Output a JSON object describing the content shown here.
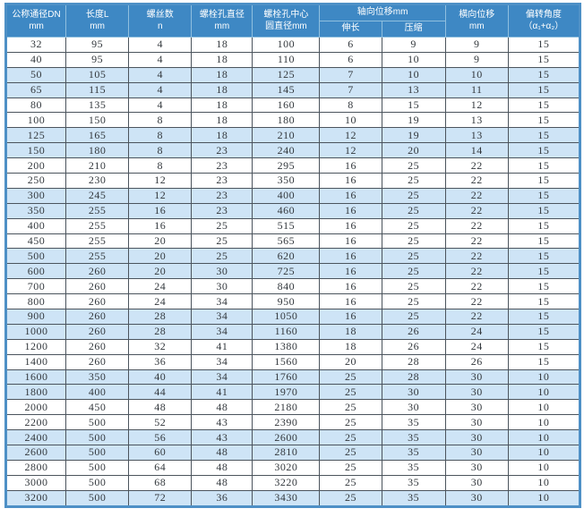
{
  "table": {
    "header": {
      "dn": [
        "公称通径DN",
        "mm"
      ],
      "length": [
        "长度L",
        "mm"
      ],
      "screw_count": [
        "螺丝数",
        "n"
      ],
      "bolt_hole_dia": [
        "螺栓孔直径",
        "mm"
      ],
      "bolt_circle_dia": [
        "螺栓孔中心",
        "圆直径mm"
      ],
      "axial_group": "轴向位移mm",
      "axial_sub": [
        "伸长",
        "压缩"
      ],
      "lateral": [
        "横向位移",
        "mm"
      ],
      "angle": [
        "偏转角度",
        "（α₁+α₂）"
      ]
    },
    "rows": [
      [
        32,
        95,
        4,
        18,
        100,
        6,
        9,
        9,
        15
      ],
      [
        40,
        95,
        4,
        18,
        110,
        6,
        10,
        9,
        15
      ],
      [
        50,
        105,
        4,
        18,
        125,
        7,
        10,
        10,
        15
      ],
      [
        65,
        115,
        4,
        18,
        145,
        7,
        13,
        11,
        15
      ],
      [
        80,
        135,
        4,
        18,
        160,
        8,
        15,
        12,
        15
      ],
      [
        100,
        150,
        8,
        18,
        180,
        10,
        19,
        13,
        15
      ],
      [
        125,
        165,
        8,
        18,
        210,
        12,
        19,
        13,
        15
      ],
      [
        150,
        180,
        8,
        23,
        240,
        12,
        20,
        14,
        15
      ],
      [
        200,
        210,
        8,
        23,
        295,
        16,
        25,
        22,
        15
      ],
      [
        250,
        230,
        12,
        23,
        350,
        16,
        25,
        22,
        15
      ],
      [
        300,
        245,
        12,
        23,
        400,
        16,
        25,
        22,
        15
      ],
      [
        350,
        255,
        16,
        23,
        460,
        16,
        25,
        22,
        15
      ],
      [
        400,
        255,
        16,
        25,
        515,
        16,
        25,
        22,
        15
      ],
      [
        450,
        255,
        20,
        25,
        565,
        16,
        25,
        22,
        15
      ],
      [
        500,
        255,
        20,
        25,
        620,
        16,
        25,
        22,
        15
      ],
      [
        600,
        260,
        20,
        30,
        725,
        16,
        25,
        22,
        15
      ],
      [
        700,
        260,
        24,
        30,
        840,
        16,
        25,
        22,
        15
      ],
      [
        800,
        260,
        24,
        34,
        950,
        16,
        25,
        22,
        15
      ],
      [
        900,
        260,
        28,
        34,
        1050,
        16,
        25,
        22,
        15
      ],
      [
        1000,
        260,
        28,
        34,
        1160,
        18,
        26,
        24,
        15
      ],
      [
        1200,
        260,
        32,
        41,
        1380,
        18,
        26,
        24,
        15
      ],
      [
        1400,
        260,
        36,
        34,
        1560,
        20,
        28,
        26,
        15
      ],
      [
        1600,
        350,
        40,
        34,
        1760,
        25,
        28,
        30,
        10
      ],
      [
        1800,
        400,
        44,
        41,
        1970,
        25,
        30,
        30,
        10
      ],
      [
        2000,
        450,
        48,
        48,
        2180,
        25,
        30,
        30,
        10
      ],
      [
        2200,
        500,
        52,
        43,
        2390,
        25,
        35,
        30,
        10
      ],
      [
        2400,
        500,
        56,
        43,
        2600,
        25,
        35,
        30,
        10
      ],
      [
        2600,
        500,
        60,
        48,
        2810,
        25,
        35,
        30,
        10
      ],
      [
        2800,
        500,
        64,
        48,
        3020,
        25,
        35,
        30,
        10
      ],
      [
        3000,
        500,
        68,
        48,
        3220,
        25,
        35,
        30,
        10
      ],
      [
        3200,
        500,
        72,
        36,
        3430,
        25,
        35,
        30,
        10
      ]
    ],
    "stripe_pattern": "two-white-two-blue"
  },
  "colors": {
    "header_bg": "#3e88c4",
    "header_text": "#ffffff",
    "header_border": "#8fbfdf",
    "stripe_bg": "#cee4f6",
    "body_border": "#4b545d",
    "outer_border": "#4e90c6",
    "text": "#33383d"
  }
}
